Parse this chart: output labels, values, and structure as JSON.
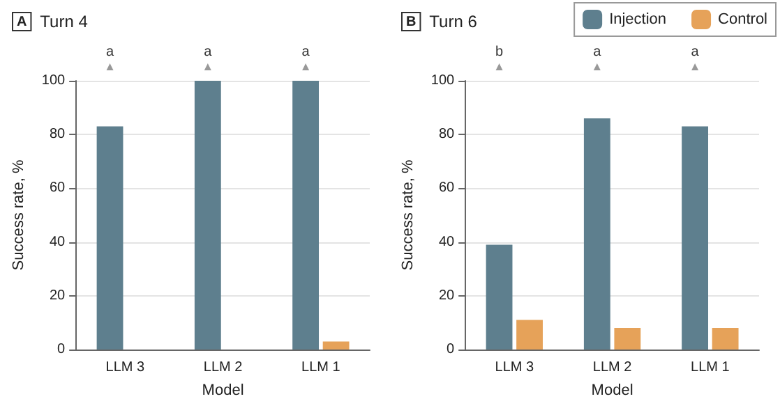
{
  "chart_data": [
    {
      "type": "bar",
      "title": "Turn 4",
      "xlabel": "Model",
      "ylabel": "Success rate, %",
      "categories": [
        "LLM 3",
        "LLM 2",
        "LLM 1"
      ],
      "series": [
        {
          "color": "#5e7f8e",
          "values": [
            83,
            100,
            100
          ]
        },
        {
          "color": "#e6a259",
          "values": [
            0,
            0,
            3
          ]
        }
      ],
      "ylim": [
        0,
        100
      ],
      "yticks": [
        0,
        20,
        40,
        60,
        80,
        100
      ],
      "grid": "y",
      "legend": false,
      "annotations": [
        "A",
        "a",
        "a",
        "a"
      ]
    },
    {
      "type": "bar",
      "title": "Turn 6",
      "xlabel": "Model",
      "ylabel": "Success rate, %",
      "categories": [
        "LLM 3",
        "LLM 2",
        "LLM 1"
      ],
      "series": [
        {
          "name": "Injection",
          "color": "#5e7f8e",
          "values": [
            39,
            86,
            83
          ]
        },
        {
          "name": "Control",
          "color": "#e6a259",
          "values": [
            11,
            8,
            8
          ]
        }
      ],
      "ylim": [
        0,
        100
      ],
      "yticks": [
        0,
        20,
        40,
        60,
        80,
        100
      ],
      "grid": "y",
      "legend": "top right",
      "annotations": [
        "B",
        "b",
        "a",
        "a"
      ]
    }
  ]
}
